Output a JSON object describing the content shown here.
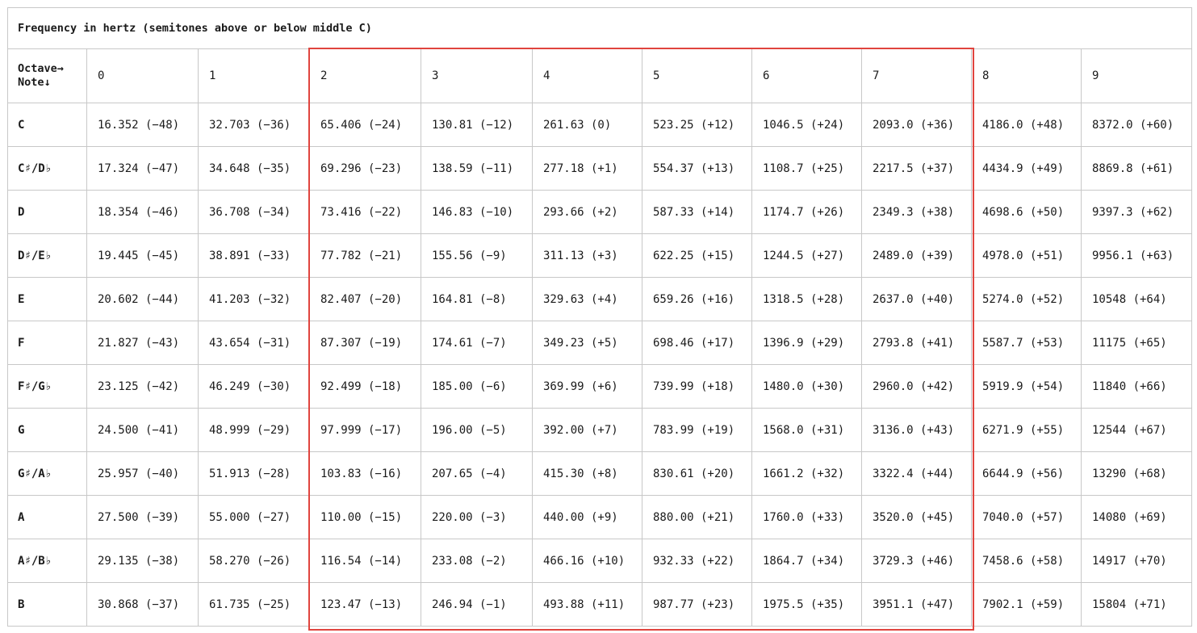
{
  "caption": "Frequency in hertz (semitones above or below middle C)",
  "header": {
    "corner_line1": "Octave→",
    "corner_line2": "Note↓",
    "octaves": [
      "0",
      "1",
      "2",
      "3",
      "4",
      "5",
      "6",
      "7",
      "8",
      "9"
    ]
  },
  "rows": [
    {
      "note": "C",
      "cells": [
        "16.352 (−48)",
        "32.703 (−36)",
        "65.406 (−24)",
        "130.81 (−12)",
        "261.63 (0)",
        "523.25 (+12)",
        "1046.5 (+24)",
        "2093.0 (+36)",
        "4186.0 (+48)",
        "8372.0 (+60)"
      ]
    },
    {
      "note": "C♯/D♭",
      "cells": [
        "17.324 (−47)",
        "34.648 (−35)",
        "69.296 (−23)",
        "138.59 (−11)",
        "277.18 (+1)",
        "554.37 (+13)",
        "1108.7 (+25)",
        "2217.5 (+37)",
        "4434.9 (+49)",
        "8869.8 (+61)"
      ]
    },
    {
      "note": "D",
      "cells": [
        "18.354 (−46)",
        "36.708 (−34)",
        "73.416 (−22)",
        "146.83 (−10)",
        "293.66 (+2)",
        "587.33 (+14)",
        "1174.7 (+26)",
        "2349.3 (+38)",
        "4698.6 (+50)",
        "9397.3 (+62)"
      ]
    },
    {
      "note": "D♯/E♭",
      "cells": [
        "19.445 (−45)",
        "38.891 (−33)",
        "77.782 (−21)",
        "155.56 (−9)",
        "311.13 (+3)",
        "622.25 (+15)",
        "1244.5 (+27)",
        "2489.0 (+39)",
        "4978.0 (+51)",
        "9956.1 (+63)"
      ]
    },
    {
      "note": "E",
      "cells": [
        "20.602 (−44)",
        "41.203 (−32)",
        "82.407 (−20)",
        "164.81 (−8)",
        "329.63 (+4)",
        "659.26 (+16)",
        "1318.5 (+28)",
        "2637.0 (+40)",
        "5274.0 (+52)",
        "10548 (+64)"
      ]
    },
    {
      "note": "F",
      "cells": [
        "21.827 (−43)",
        "43.654 (−31)",
        "87.307 (−19)",
        "174.61 (−7)",
        "349.23 (+5)",
        "698.46 (+17)",
        "1396.9 (+29)",
        "2793.8 (+41)",
        "5587.7 (+53)",
        "11175 (+65)"
      ]
    },
    {
      "note": "F♯/G♭",
      "cells": [
        "23.125 (−42)",
        "46.249 (−30)",
        "92.499 (−18)",
        "185.00 (−6)",
        "369.99 (+6)",
        "739.99 (+18)",
        "1480.0 (+30)",
        "2960.0 (+42)",
        "5919.9 (+54)",
        "11840 (+66)"
      ]
    },
    {
      "note": "G",
      "cells": [
        "24.500 (−41)",
        "48.999 (−29)",
        "97.999 (−17)",
        "196.00 (−5)",
        "392.00 (+7)",
        "783.99 (+19)",
        "1568.0 (+31)",
        "3136.0 (+43)",
        "6271.9 (+55)",
        "12544 (+67)"
      ]
    },
    {
      "note": "G♯/A♭",
      "cells": [
        "25.957 (−40)",
        "51.913 (−28)",
        "103.83 (−16)",
        "207.65 (−4)",
        "415.30 (+8)",
        "830.61 (+20)",
        "1661.2 (+32)",
        "3322.4 (+44)",
        "6644.9 (+56)",
        "13290 (+68)"
      ]
    },
    {
      "note": "A",
      "cells": [
        "27.500 (−39)",
        "55.000 (−27)",
        "110.00 (−15)",
        "220.00 (−3)",
        "440.00 (+9)",
        "880.00 (+21)",
        "1760.0 (+33)",
        "3520.0 (+45)",
        "7040.0 (+57)",
        "14080 (+69)"
      ]
    },
    {
      "note": "A♯/B♭",
      "cells": [
        "29.135 (−38)",
        "58.270 (−26)",
        "116.54 (−14)",
        "233.08 (−2)",
        "466.16 (+10)",
        "932.33 (+22)",
        "1864.7 (+34)",
        "3729.3 (+46)",
        "7458.6 (+58)",
        "14917 (+70)"
      ]
    },
    {
      "note": "B",
      "cells": [
        "30.868 (−37)",
        "61.735 (−25)",
        "123.47 (−13)",
        "246.94 (−1)",
        "493.88 (+11)",
        "987.77 (+23)",
        "1975.5 (+35)",
        "3951.1 (+47)",
        "7902.1 (+59)",
        "15804 (+71)"
      ]
    }
  ],
  "highlight": {
    "color": "#e0443e",
    "octaves_covered": [
      "2",
      "3",
      "4",
      "5",
      "6",
      "7"
    ]
  }
}
